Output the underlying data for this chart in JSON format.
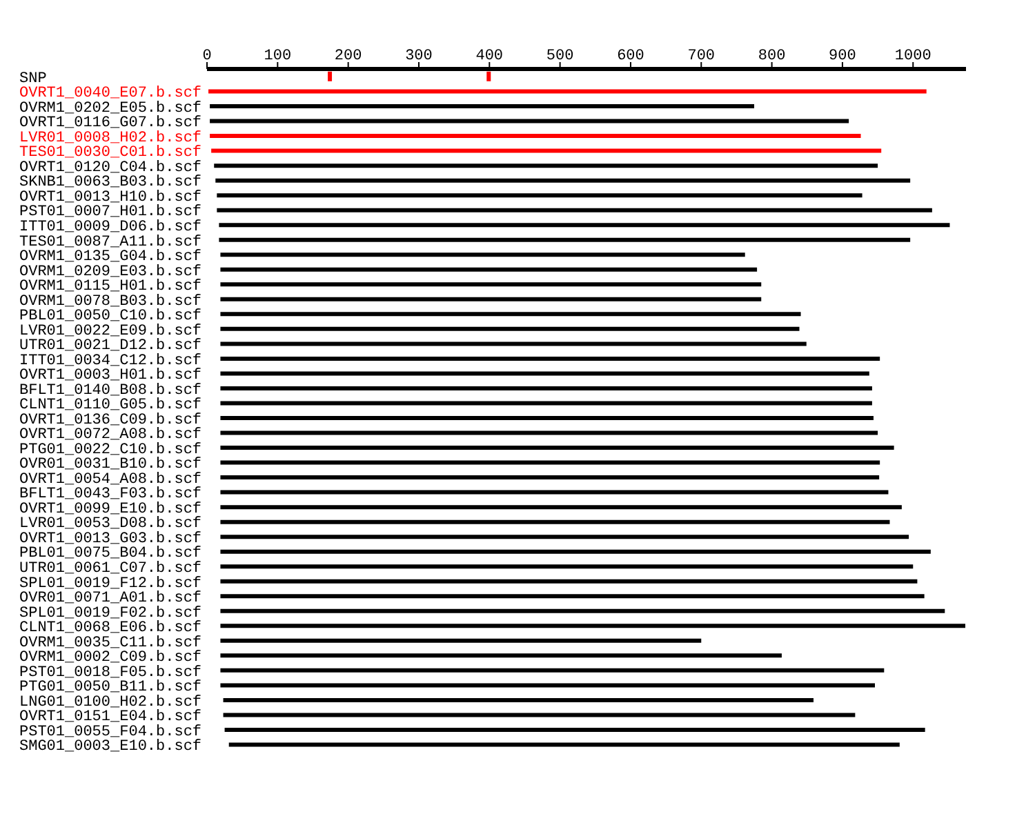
{
  "chart_data": {
    "type": "bar",
    "orientation": "horizontal",
    "categories": [
      "SNP",
      "OVRT1_0040_E07.b.scf",
      "OVRM1_0202_E05.b.scf",
      "OVRT1_0116_G07.b.scf",
      "LVR01_0008_H02.b.scf",
      "TES01_0030_C01.b.scf",
      "OVRT1_0120_C04.b.scf",
      "SKNB1_0063_B03.b.scf",
      "OVRT1_0013_H10.b.scf",
      "PST01_0007_H01.b.scf",
      "ITT01_0009_D06.b.scf",
      "TES01_0087_A11.b.scf",
      "OVRM1_0135_G04.b.scf",
      "OVRM1_0209_E03.b.scf",
      "OVRM1_0115_H01.b.scf",
      "OVRM1_0078_B03.b.scf",
      "PBL01_0050_C10.b.scf",
      "LVR01_0022_E09.b.scf",
      "UTR01_0021_D12.b.scf",
      "ITT01_0034_C12.b.scf",
      "OVRT1_0003_H01.b.scf",
      "BFLT1_0140_B08.b.scf",
      "CLNT1_0110_G05.b.scf",
      "OVRT1_0136_C09.b.scf",
      "OVRT1_0072_A08.b.scf",
      "PTG01_0022_C10.b.scf",
      "OVR01_0031_B10.b.scf",
      "OVRT1_0054_A08.b.scf",
      "BFLT1_0043_F03.b.scf",
      "OVRT1_0099_E10.b.scf",
      "LVR01_0053_D08.b.scf",
      "OVRT1_0013_G03.b.scf",
      "PBL01_0075_B04.b.scf",
      "UTR01_0061_C07.b.scf",
      "SPL01_0019_F12.b.scf",
      "OVR01_0071_A01.b.scf",
      "SPL01_0019_F02.b.scf",
      "CLNT1_0068_E06.b.scf",
      "OVRM1_0035_C11.b.scf",
      "OVRM1_0002_C09.b.scf",
      "PST01_0018_F05.b.scf",
      "PTG01_0050_B11.b.scf",
      "LNG01_0100_H02.b.scf",
      "OVRT1_0151_E04.b.scf",
      "PST01_0055_F04.b.scf",
      "SMG01_0003_E10.b.scf"
    ],
    "xlim": [
      0,
      1075
    ],
    "xticks": [
      0,
      100,
      200,
      300,
      400,
      500,
      600,
      700,
      800,
      900,
      1000
    ],
    "grid": false,
    "legend": false,
    "series": [
      {
        "type": "bar",
        "base": [
          null,
          2,
          4,
          4,
          4,
          6,
          10,
          12,
          14,
          14,
          17,
          17,
          19,
          19,
          19,
          19,
          19,
          19,
          19,
          19,
          19,
          19,
          19,
          19,
          19,
          19,
          19,
          19,
          19,
          19,
          19,
          19,
          19,
          19,
          19,
          19,
          19,
          19,
          19,
          19,
          19,
          19,
          23,
          23,
          25,
          31
        ],
        "values": [
          null,
          1017,
          771,
          905,
          922,
          949,
          940,
          984,
          914,
          1013,
          1035,
          979,
          743,
          760,
          766,
          766,
          822,
          820,
          830,
          934,
          919,
          923,
          923,
          925,
          931,
          954,
          934,
          933,
          946,
          965,
          948,
          975,
          1006,
          981,
          987,
          997,
          1026,
          1055,
          681,
          795,
          940,
          927,
          836,
          895,
          992,
          950
        ],
        "colors": [
          null,
          "#ff0000",
          "#000000",
          "#000000",
          "#ff0000",
          "#ff0000",
          "#000000",
          "#000000",
          "#000000",
          "#000000",
          "#000000",
          "#000000",
          "#000000",
          "#000000",
          "#000000",
          "#000000",
          "#000000",
          "#000000",
          "#000000",
          "#000000",
          "#000000",
          "#000000",
          "#000000",
          "#000000",
          "#000000",
          "#000000",
          "#000000",
          "#000000",
          "#000000",
          "#000000",
          "#000000",
          "#000000",
          "#000000",
          "#000000",
          "#000000",
          "#000000",
          "#000000",
          "#000000",
          "#000000",
          "#000000",
          "#000000",
          "#000000",
          "#000000",
          "#000000",
          "#000000",
          "#000000"
        ]
      },
      {
        "type": "scatter",
        "color": "#ff0000",
        "marker": "square",
        "x": [
          "SNP",
          "SNP"
        ],
        "values": [
          174,
          399
        ]
      }
    ]
  }
}
